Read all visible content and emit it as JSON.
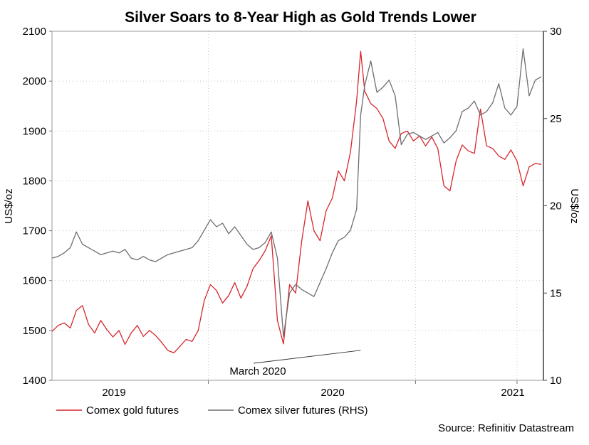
{
  "chart_data": {
    "type": "line",
    "title": "Silver Soars to 8-Year High as Gold Trends Lower",
    "ylabel": "US$/oz",
    "ylabel_right": "US$/oz",
    "ylim": [
      1400,
      2100
    ],
    "ylim_right": [
      10,
      30
    ],
    "y_ticks": [
      "1400",
      "1500",
      "1600",
      "1700",
      "1800",
      "1900",
      "2000",
      "2100"
    ],
    "y_ticks_right": [
      "10",
      "15",
      "20",
      "25",
      "30"
    ],
    "x_ticks": [
      "2019",
      "2020",
      "2021"
    ],
    "x_range": [
      2018.7,
      2021.12
    ],
    "annotation": {
      "text": "March 2020",
      "x": 2020.22,
      "y_right": 11.8
    },
    "source": "Source: Refinitiv Datastream",
    "colors": {
      "gold": "#d6262e",
      "silver": "#6e6e6e"
    },
    "series": [
      {
        "name": "Comex gold futures",
        "axis": "left",
        "color": "#d6262e",
        "x": [
          2018.7,
          2018.73,
          2018.76,
          2018.79,
          2018.82,
          2018.85,
          2018.88,
          2018.91,
          2018.94,
          2018.97,
          2019.0,
          2019.03,
          2019.06,
          2019.09,
          2019.12,
          2019.15,
          2019.18,
          2019.21,
          2019.24,
          2019.27,
          2019.3,
          2019.33,
          2019.36,
          2019.39,
          2019.42,
          2019.45,
          2019.48,
          2019.51,
          2019.54,
          2019.57,
          2019.6,
          2019.63,
          2019.66,
          2019.69,
          2019.72,
          2019.75,
          2019.78,
          2019.81,
          2019.84,
          2019.87,
          2019.9,
          2019.93,
          2019.96,
          2019.99,
          2020.02,
          2020.05,
          2020.08,
          2020.11,
          2020.14,
          2020.17,
          2020.2,
          2020.22,
          2020.24,
          2020.27,
          2020.3,
          2020.33,
          2020.36,
          2020.39,
          2020.42,
          2020.45,
          2020.48,
          2020.51,
          2020.54,
          2020.57,
          2020.6,
          2020.63,
          2020.66,
          2020.69,
          2020.72,
          2020.75,
          2020.78,
          2020.81,
          2020.84,
          2020.87,
          2020.9,
          2020.93,
          2020.96,
          2020.99,
          2021.02,
          2021.05,
          2021.08,
          2021.11
        ],
        "y": [
          1498,
          1510,
          1515,
          1505,
          1540,
          1550,
          1512,
          1495,
          1520,
          1502,
          1487,
          1500,
          1472,
          1495,
          1510,
          1488,
          1500,
          1490,
          1476,
          1460,
          1455,
          1468,
          1482,
          1478,
          1500,
          1560,
          1592,
          1580,
          1555,
          1570,
          1596,
          1565,
          1588,
          1624,
          1640,
          1660,
          1690,
          1520,
          1473,
          1592,
          1575,
          1680,
          1760,
          1700,
          1680,
          1740,
          1765,
          1820,
          1800,
          1858,
          1960,
          2060,
          1980,
          1955,
          1945,
          1925,
          1880,
          1865,
          1895,
          1900,
          1880,
          1890,
          1870,
          1888,
          1865,
          1790,
          1780,
          1840,
          1872,
          1860,
          1855,
          1944,
          1870,
          1865,
          1850,
          1843,
          1862,
          1840,
          1790,
          1828,
          1835,
          1833
        ]
      },
      {
        "name": "Comex silver futures (RHS)",
        "axis": "right",
        "color": "#6e6e6e",
        "x": [
          2018.7,
          2018.73,
          2018.76,
          2018.79,
          2018.82,
          2018.85,
          2018.88,
          2018.91,
          2018.94,
          2018.97,
          2019.0,
          2019.03,
          2019.06,
          2019.09,
          2019.12,
          2019.15,
          2019.18,
          2019.21,
          2019.24,
          2019.27,
          2019.3,
          2019.33,
          2019.36,
          2019.39,
          2019.42,
          2019.45,
          2019.48,
          2019.51,
          2019.54,
          2019.57,
          2019.6,
          2019.63,
          2019.66,
          2019.69,
          2019.72,
          2019.75,
          2019.78,
          2019.81,
          2019.84,
          2019.87,
          2019.9,
          2019.93,
          2019.96,
          2019.99,
          2020.02,
          2020.05,
          2020.08,
          2020.11,
          2020.14,
          2020.17,
          2020.2,
          2020.22,
          2020.24,
          2020.27,
          2020.3,
          2020.33,
          2020.36,
          2020.39,
          2020.42,
          2020.45,
          2020.48,
          2020.51,
          2020.54,
          2020.57,
          2020.6,
          2020.63,
          2020.66,
          2020.69,
          2020.72,
          2020.75,
          2020.78,
          2020.81,
          2020.84,
          2020.87,
          2020.9,
          2020.93,
          2020.96,
          2020.99,
          2021.02,
          2021.05,
          2021.08,
          2021.11
        ],
        "y": [
          17.0,
          17.1,
          17.3,
          17.6,
          18.5,
          17.8,
          17.6,
          17.4,
          17.2,
          17.3,
          17.4,
          17.3,
          17.5,
          17.0,
          16.9,
          17.1,
          16.9,
          16.8,
          17.0,
          17.2,
          17.3,
          17.4,
          17.5,
          17.6,
          18.0,
          18.6,
          19.2,
          18.8,
          19.0,
          18.4,
          18.8,
          18.3,
          17.8,
          17.5,
          17.6,
          17.9,
          18.5,
          17.0,
          12.5,
          15.0,
          15.5,
          15.2,
          15.0,
          14.8,
          15.6,
          16.4,
          17.3,
          18.0,
          18.2,
          18.6,
          19.8,
          25.2,
          26.9,
          28.3,
          26.5,
          26.8,
          27.2,
          26.3,
          23.5,
          24.1,
          24.2,
          24.0,
          23.8,
          24.0,
          24.2,
          23.6,
          23.9,
          24.3,
          25.4,
          25.6,
          26.0,
          25.2,
          25.4,
          25.9,
          27.0,
          25.6,
          25.2,
          25.7,
          29.0,
          26.3,
          27.2,
          27.4
        ]
      }
    ],
    "legend": [
      "Comex gold futures",
      "Comex silver futures (RHS)"
    ]
  }
}
